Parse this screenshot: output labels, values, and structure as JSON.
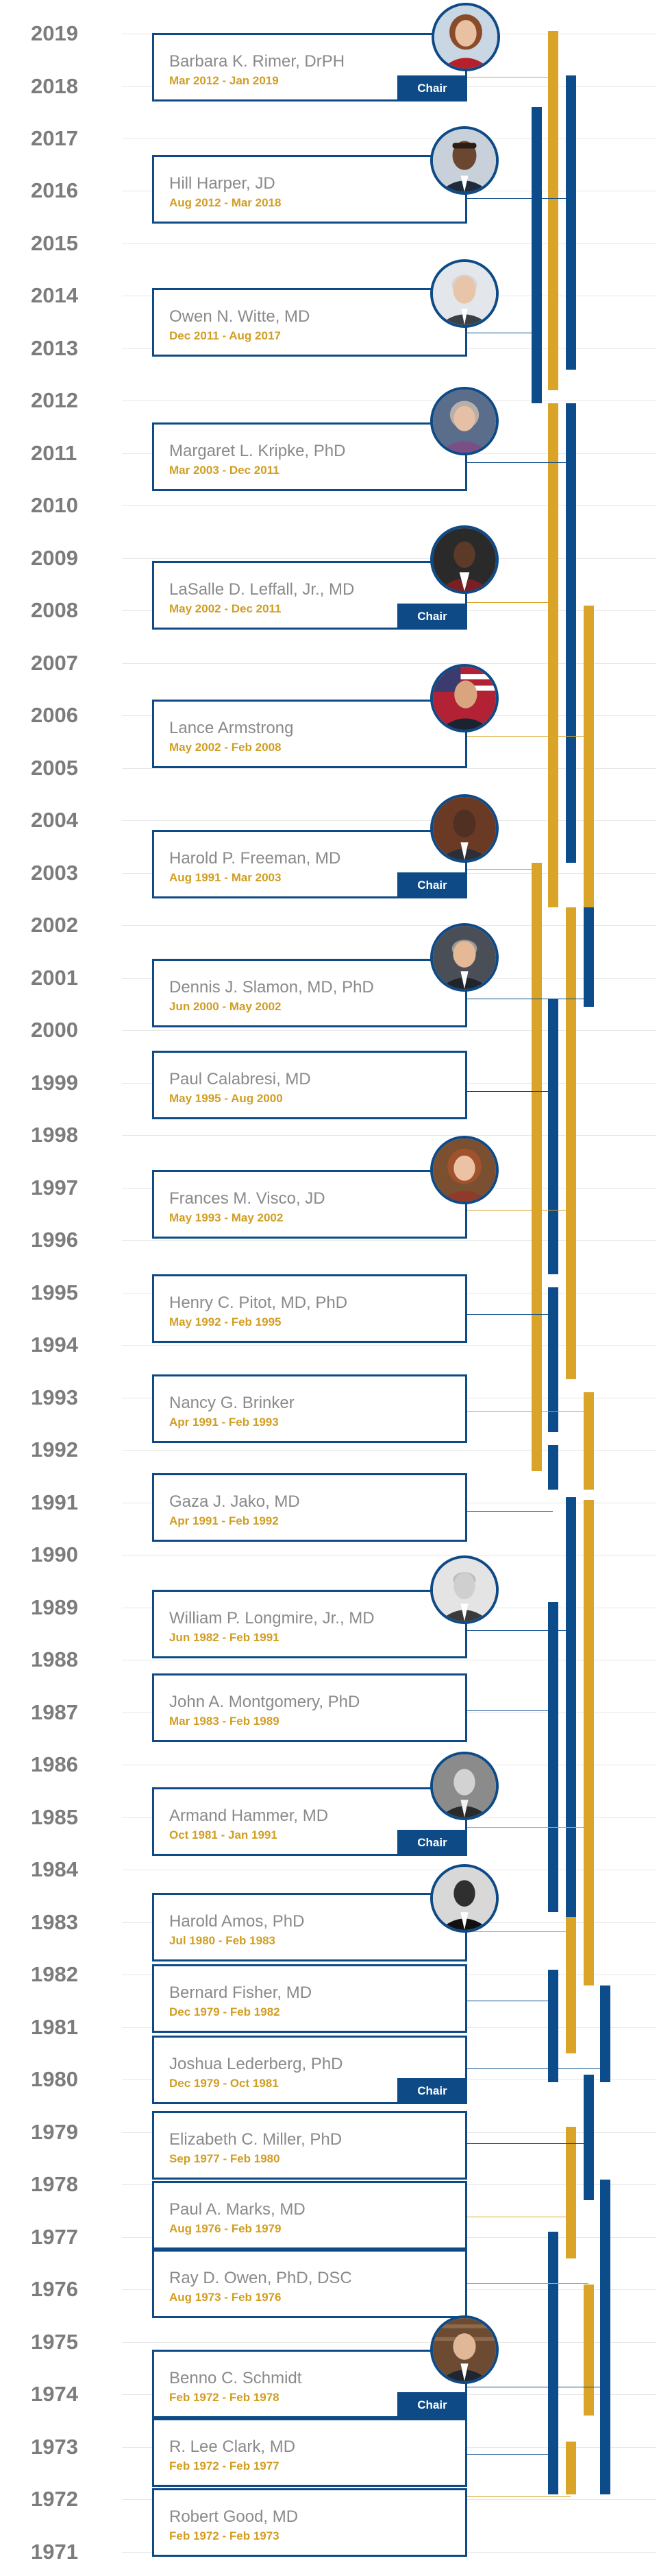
{
  "years": [
    "2019",
    "2018",
    "2017",
    "2016",
    "2015",
    "2014",
    "2013",
    "2012",
    "2011",
    "2010",
    "2009",
    "2008",
    "2007",
    "2006",
    "2005",
    "2004",
    "2003",
    "2002",
    "2001",
    "2000",
    "1999",
    "1998",
    "1997",
    "1996",
    "1995",
    "1994",
    "1993",
    "1992",
    "1991",
    "1990",
    "1989",
    "1988",
    "1987",
    "1986",
    "1985",
    "1984",
    "1983",
    "1982",
    "1981",
    "1980",
    "1979",
    "1978",
    "1977",
    "1976",
    "1975",
    "1974",
    "1973",
    "1972",
    "1971"
  ],
  "members": [
    {
      "name": "Barbara K. Rimer, DrPH",
      "term": "Mar 2012 - Jan 2019",
      "chair": "Chair",
      "photo": "barbara-rimer-photo",
      "color": "#d9a428"
    },
    {
      "name": "Hill Harper, JD",
      "term": "Aug 2012 - Mar 2018",
      "chair": null,
      "photo": "hill-harper-photo",
      "color": "#0d4c8b"
    },
    {
      "name": "Owen N. Witte, MD",
      "term": "Dec 2011 - Aug 2017",
      "chair": null,
      "photo": "owen-witte-photo",
      "color": "#0d4c8b"
    },
    {
      "name": "Margaret L.  Kripke, PhD",
      "term": "Mar 2003 - Dec 2011",
      "chair": null,
      "photo": "margaret-kripke-photo",
      "color": "#0d4c8b"
    },
    {
      "name": "LaSalle D. Leffall, Jr., MD",
      "term": "May 2002 - Dec 2011",
      "chair": "Chair",
      "photo": "lasalle-leffall-photo",
      "color": "#d9a428"
    },
    {
      "name": "Lance Armstrong",
      "term": "May 2002 - Feb 2008",
      "chair": null,
      "photo": "lance-armstrong-photo",
      "color": "#d9a428"
    },
    {
      "name": "Harold P. Freeman, MD",
      "term": "Aug 1991 - Mar 2003",
      "chair": "Chair",
      "photo": "harold-freeman-photo",
      "color": "#d9a428"
    },
    {
      "name": "Dennis J. Slamon, MD, PhD",
      "term": "Jun 2000 - May 2002",
      "chair": null,
      "photo": "dennis-slamon-photo",
      "color": "#0d4c8b"
    },
    {
      "name": "Paul Calabresi, MD",
      "term": "May 1995 - Aug 2000",
      "chair": null,
      "photo": null,
      "color": "#0d4c8b"
    },
    {
      "name": "Frances M. Visco, JD",
      "term": "May 1993 - May 2002",
      "chair": null,
      "photo": "frances-visco-photo",
      "color": "#d9a428"
    },
    {
      "name": "Henry C. Pitot, MD, PhD",
      "term": "May 1992 - Feb 1995",
      "chair": null,
      "photo": null,
      "color": "#0d4c8b"
    },
    {
      "name": "Nancy G. Brinker",
      "term": "Apr 1991 - Feb 1993",
      "chair": null,
      "photo": null,
      "color": "#d9a428"
    },
    {
      "name": "Gaza J. Jako, MD",
      "term": "Apr 1991 - Feb 1992",
      "chair": null,
      "photo": null,
      "color": "#0d4c8b"
    },
    {
      "name": "William P. Longmire, Jr., MD",
      "term": "Jun 1982 - Feb 1991",
      "chair": null,
      "photo": "william-longmire-photo",
      "color": "#0d4c8b"
    },
    {
      "name": "John A. Montgomery, PhD",
      "term": "Mar 1983 - Feb 1989",
      "chair": null,
      "photo": null,
      "color": "#0d4c8b"
    },
    {
      "name": "Armand Hammer, MD",
      "term": "Oct 1981 - Jan 1991",
      "chair": "Chair",
      "photo": "armand-hammer-photo",
      "color": "#d9a428"
    },
    {
      "name": "Harold Amos, PhD",
      "term": "Jul 1980 - Feb 1983",
      "chair": null,
      "photo": "harold-amos-photo",
      "color": "#d9a428"
    },
    {
      "name": "Bernard Fisher, MD",
      "term": "Dec 1979 - Feb 1982",
      "chair": null,
      "photo": null,
      "color": "#0d4c8b"
    },
    {
      "name": "Joshua Lederberg, PhD",
      "term": "Dec 1979 - Oct 1981",
      "chair": "Chair",
      "photo": null,
      "color": "#0d4c8b"
    },
    {
      "name": "Elizabeth C. Miller, PhD",
      "term": "Sep 1977 - Feb 1980",
      "chair": null,
      "photo": null,
      "color": "#0d4c8b"
    },
    {
      "name": "Paul A. Marks, MD",
      "term": "Aug 1976 - Feb 1979",
      "chair": null,
      "photo": null,
      "color": "#d9a428"
    },
    {
      "name": "Ray D. Owen, PhD, DSC",
      "term": "Aug 1973 - Feb 1976",
      "chair": null,
      "photo": null,
      "color": "#d9a428"
    },
    {
      "name": "Benno C. Schmidt",
      "term": "Feb 1972 - Feb 1978",
      "chair": "Chair",
      "photo": "benno-schmidt-photo",
      "color": "#0d4c8b"
    },
    {
      "name": "R. Lee Clark, MD",
      "term": "Feb 1972 - Feb 1977",
      "chair": null,
      "photo": null,
      "color": "#0d4c8b"
    },
    {
      "name": "Robert Good, MD",
      "term": "Feb 1972 - Feb 1973",
      "chair": null,
      "photo": null,
      "color": "#d9a428"
    }
  ],
  "term_bars": [
    {
      "color": "#d9a428",
      "start": 2012.2,
      "end": 2019.05
    },
    {
      "color": "#0d4c8b",
      "start": 2012.6,
      "end": 2018.2
    },
    {
      "color": "#0d4c8b",
      "start": 2011.95,
      "end": 2017.6
    },
    {
      "color": "#0d4c8b",
      "start": 2003.2,
      "end": 2011.95
    },
    {
      "color": "#d9a428",
      "start": 2002.35,
      "end": 2011.95
    },
    {
      "color": "#d9a428",
      "start": 2002.35,
      "end": 2008.1
    },
    {
      "color": "#d9a428",
      "start": 1991.6,
      "end": 2003.2
    },
    {
      "color": "#0d4c8b",
      "start": 2000.45,
      "end": 2002.35
    },
    {
      "color": "#0d4c8b",
      "start": 1995.35,
      "end": 2000.6
    },
    {
      "color": "#d9a428",
      "start": 1993.35,
      "end": 2002.35
    },
    {
      "color": "#0d4c8b",
      "start": 1992.35,
      "end": 1995.1
    },
    {
      "color": "#d9a428",
      "start": 1991.25,
      "end": 1993.1
    },
    {
      "color": "#0d4c8b",
      "start": 1991.25,
      "end": 1992.1
    },
    {
      "color": "#0d4c8b",
      "start": 1982.45,
      "end": 1991.1
    },
    {
      "color": "#0d4c8b",
      "start": 1983.2,
      "end": 1989.1
    },
    {
      "color": "#d9a428",
      "start": 1981.8,
      "end": 1991.05
    },
    {
      "color": "#d9a428",
      "start": 1980.5,
      "end": 1983.1
    },
    {
      "color": "#0d4c8b",
      "start": 1979.95,
      "end": 1982.1
    },
    {
      "color": "#0d4c8b",
      "start": 1979.95,
      "end": 1981.8
    },
    {
      "color": "#0d4c8b",
      "start": 1977.7,
      "end": 1980.1
    },
    {
      "color": "#d9a428",
      "start": 1976.6,
      "end": 1979.1
    },
    {
      "color": "#d9a428",
      "start": 1973.6,
      "end": 1976.1
    },
    {
      "color": "#0d4c8b",
      "start": 1972.1,
      "end": 1978.1
    },
    {
      "color": "#0d4c8b",
      "start": 1972.1,
      "end": 1977.1
    },
    {
      "color": "#d9a428",
      "start": 1972.1,
      "end": 1973.1
    }
  ]
}
